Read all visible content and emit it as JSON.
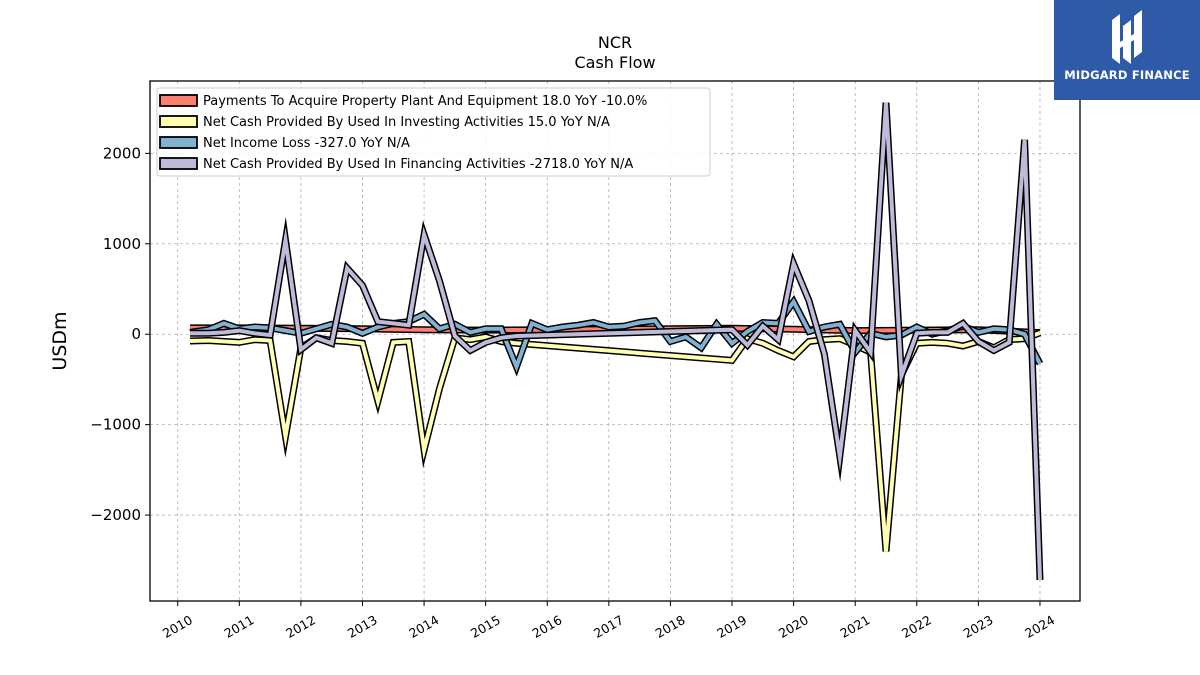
{
  "brand": {
    "name": "MIDGARD FINANCE",
    "icon": "midgard-logo-icon",
    "color": "#2f5aa8"
  },
  "chart_data": {
    "type": "line",
    "title": "NCR",
    "subtitle": "Cash Flow",
    "ylabel": "USDm",
    "xlabel": "",
    "ylim": [
      -2950,
      2800
    ],
    "xlim": [
      2009.55,
      2024.65
    ],
    "yticks": [
      2000,
      1000,
      0,
      -1000,
      -2000
    ],
    "ytick_labels": [
      "2000",
      "1000",
      "0",
      "−1000",
      "−2000"
    ],
    "xticks": [
      2010,
      2011,
      2012,
      2013,
      2014,
      2015,
      2016,
      2017,
      2018,
      2019,
      2020,
      2021,
      2022,
      2023,
      2024
    ],
    "xtick_labels": [
      "2010",
      "2011",
      "2012",
      "2013",
      "2014",
      "2015",
      "2016",
      "2017",
      "2018",
      "2019",
      "2020",
      "2021",
      "2022",
      "2023",
      "2024"
    ],
    "grid": true,
    "legend_position": "top-left",
    "series": [
      {
        "name": "Payments To Acquire Property Plant And Equipment  18.0 YoY -10.0%",
        "color": "#fb8072",
        "x": [
          2010.2,
          2011.0,
          2012.0,
          2013.0,
          2014.0,
          2015.0,
          2016.0,
          2017.0,
          2018.0,
          2019.0,
          2020.0,
          2021.0,
          2022.0,
          2023.0,
          2024.0
        ],
        "y": [
          70,
          70,
          65,
          60,
          50,
          45,
          50,
          55,
          60,
          65,
          55,
          40,
          45,
          50,
          18
        ]
      },
      {
        "name": "Net Cash Provided By Used In Investing Activities  15.0 YoY N/A",
        "color": "#ffffb3",
        "x": [
          2010.2,
          2010.5,
          2011.0,
          2011.25,
          2011.5,
          2011.75,
          2012.0,
          2012.25,
          2012.5,
          2012.75,
          2013.0,
          2013.25,
          2013.5,
          2013.75,
          2014.0,
          2014.25,
          2014.5,
          2014.75,
          2015.0,
          2015.25,
          2015.5,
          2019.0,
          2019.25,
          2019.5,
          2019.75,
          2020.0,
          2020.25,
          2020.5,
          2020.75,
          2021.0,
          2021.25,
          2021.5,
          2021.75,
          2022.0,
          2022.25,
          2022.5,
          2022.75,
          2023.0,
          2023.25,
          2023.5,
          2023.75,
          2024.0
        ],
        "y": [
          -75,
          -70,
          -90,
          -60,
          -70,
          -1130,
          -150,
          -40,
          -70,
          -80,
          -100,
          -740,
          -90,
          -80,
          -1280,
          -600,
          -40,
          -60,
          -30,
          -80,
          -100,
          -290,
          -50,
          -100,
          -180,
          -250,
          -80,
          -60,
          -50,
          -120,
          -200,
          -2400,
          -450,
          -100,
          -90,
          -100,
          -130,
          -80,
          -150,
          -60,
          -50,
          15
        ]
      },
      {
        "name": "Net Income Loss  -327.0 YoY N/A",
        "color": "#80b1d3",
        "x": [
          2010.2,
          2010.5,
          2010.75,
          2011.0,
          2011.25,
          2011.5,
          2011.75,
          2012.0,
          2012.25,
          2012.5,
          2012.75,
          2013.0,
          2013.25,
          2013.5,
          2013.75,
          2014.0,
          2014.25,
          2014.5,
          2014.75,
          2015.0,
          2015.25,
          2015.5,
          2015.75,
          2016.0,
          2016.25,
          2016.5,
          2016.75,
          2017.0,
          2017.25,
          2017.5,
          2017.75,
          2018.0,
          2018.25,
          2018.5,
          2018.75,
          2019.0,
          2019.25,
          2019.5,
          2019.75,
          2020.0,
          2020.25,
          2020.5,
          2020.75,
          2021.0,
          2021.25,
          2021.5,
          2021.75,
          2022.0,
          2022.25,
          2022.5,
          2022.75,
          2023.0,
          2023.25,
          2023.5,
          2023.75,
          2024.0
        ],
        "y": [
          20,
          50,
          120,
          60,
          80,
          70,
          40,
          10,
          60,
          110,
          80,
          10,
          80,
          120,
          140,
          220,
          60,
          110,
          20,
          60,
          60,
          -360,
          120,
          50,
          80,
          100,
          130,
          80,
          90,
          130,
          150,
          -80,
          -30,
          -150,
          110,
          -100,
          30,
          130,
          120,
          360,
          30,
          80,
          110,
          -200,
          10,
          -30,
          -10,
          80,
          0,
          40,
          90,
          20,
          60,
          50,
          0,
          -327
        ]
      },
      {
        "name": "Net Cash Provided By Used In Financing Activities  -2718.0 YoY N/A",
        "color": "#bebada",
        "x": [
          2010.2,
          2010.5,
          2010.75,
          2011.0,
          2011.25,
          2011.5,
          2011.75,
          2012.0,
          2012.25,
          2012.5,
          2012.75,
          2013.0,
          2013.25,
          2013.5,
          2013.75,
          2014.0,
          2014.25,
          2014.5,
          2014.75,
          2015.0,
          2015.25,
          2015.5,
          2019.0,
          2019.25,
          2019.5,
          2019.75,
          2020.0,
          2020.25,
          2020.5,
          2020.75,
          2021.0,
          2021.25,
          2021.5,
          2021.75,
          2022.0,
          2022.25,
          2022.5,
          2022.75,
          2023.0,
          2023.25,
          2023.5,
          2023.75,
          2024.0
        ],
        "y": [
          10,
          10,
          20,
          40,
          10,
          -10,
          1040,
          -170,
          -40,
          -100,
          730,
          540,
          140,
          120,
          100,
          1100,
          590,
          -20,
          -180,
          -90,
          -40,
          -20,
          50,
          -120,
          90,
          -60,
          780,
          370,
          -220,
          -1350,
          40,
          -200,
          2560,
          -460,
          10,
          20,
          20,
          120,
          -80,
          -180,
          -90,
          2150,
          -2718
        ]
      }
    ]
  }
}
